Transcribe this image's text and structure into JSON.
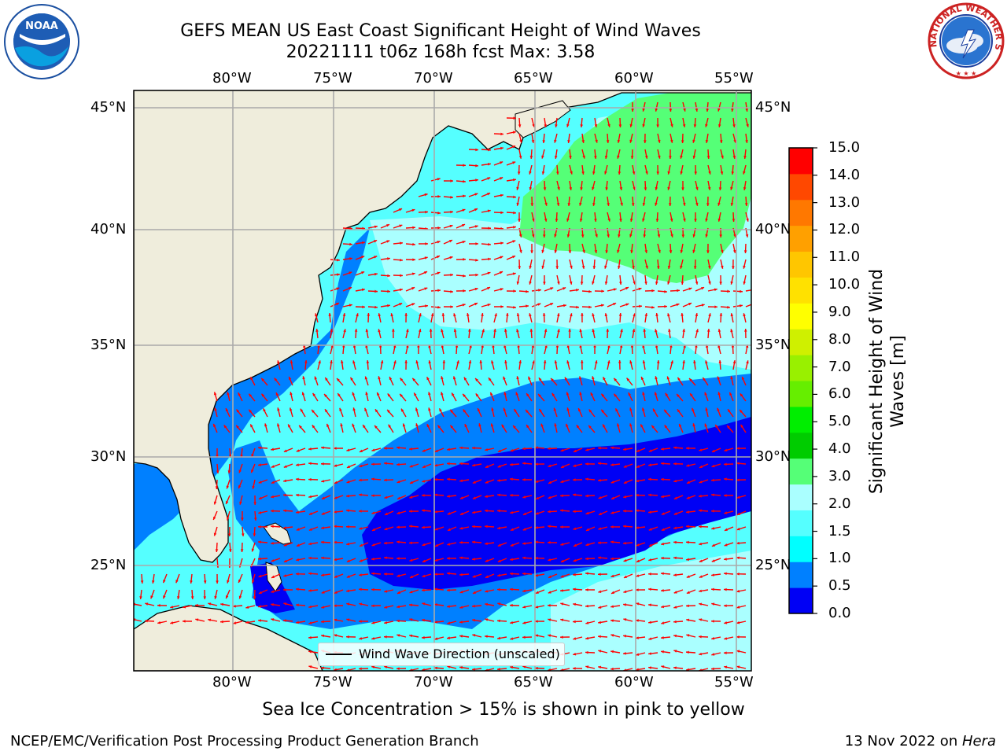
{
  "header": {
    "title": "GEFS MEAN US East Coast Significant Height of Wind Waves",
    "subtitle": "20221111 t06z 168h fcst   Max: 3.58"
  },
  "logos": {
    "left": {
      "icon": "noaa-logo",
      "text": "NOAA"
    },
    "right": {
      "icon": "national-weather-service-logo",
      "text": "NATIONAL WEATHER SERVICE"
    }
  },
  "map": {
    "lon_labels": [
      "80°W",
      "75°W",
      "70°W",
      "65°W",
      "60°W",
      "55°W"
    ],
    "lat_labels": [
      "45°N",
      "40°N",
      "35°N",
      "30°N",
      "25°N"
    ],
    "land_color": "#efeddc",
    "legend_label": "Wind Wave Direction (unscaled)",
    "arrow_color": "#ff0000"
  },
  "colorbar": {
    "label": "Significant Height of Wind Waves [m]",
    "ticks": [
      "15.0",
      "14.0",
      "13.0",
      "12.0",
      "11.0",
      "10.0",
      "9.0",
      "8.0",
      "7.0",
      "6.0",
      "5.0",
      "4.0",
      "3.0",
      "2.0",
      "1.5",
      "1.0",
      "0.5",
      "0.0"
    ],
    "colors": [
      "#0000f5",
      "#0080ff",
      "#00ffff",
      "#55ffff",
      "#aaffff",
      "#55ff77",
      "#00cc00",
      "#00ee00",
      "#66ee00",
      "#99f000",
      "#cff000",
      "#ffff00",
      "#ffe100",
      "#ffc600",
      "#ffa000",
      "#ff7800",
      "#ff4800",
      "#ff0000"
    ]
  },
  "caption": "Sea Ice Concentration > 15% is shown in pink to yellow",
  "footer": {
    "left": "NCEP/EMC/Verification Post Processing Product Generation Branch",
    "right_date": "13 Nov 2022 on ",
    "right_host": "Hera"
  }
}
